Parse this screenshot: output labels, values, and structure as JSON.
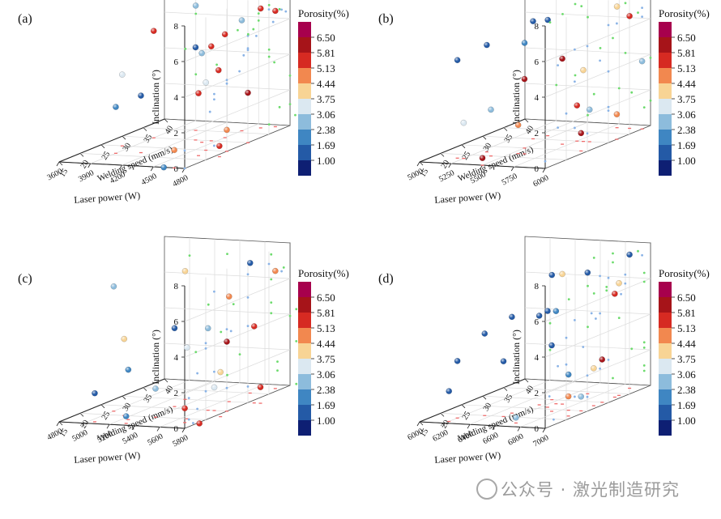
{
  "legend": {
    "title": "Porosity(%)",
    "levels": [
      "6.50",
      "5.81",
      "5.13",
      "4.44",
      "3.75",
      "3.06",
      "2.38",
      "1.69",
      "1.00"
    ],
    "colors": [
      "#a7004d",
      "#a61419",
      "#d62a22",
      "#f2884f",
      "#f8d495",
      "#dbe8f1",
      "#8dbcdc",
      "#3f86c2",
      "#245aa6",
      "#0e1f73"
    ]
  },
  "axes": {
    "zlabel": "Inclination (°)",
    "ylabel": "Welding speed (mm/s)",
    "z_ticks": [
      "0",
      "2",
      "4",
      "6",
      "8"
    ],
    "y_ticks": [
      "15",
      "20",
      "25",
      "30",
      "35",
      "40"
    ]
  },
  "watermark": "公众号 · 激光制造研究",
  "chart_data": [
    {
      "panel": "(a)",
      "type": "scatter3d",
      "xlabel": "Laser power (W)",
      "x_ticks": [
        "3600",
        "3900",
        "4200",
        "4500",
        "4800"
      ],
      "xlim": [
        3600,
        4800
      ],
      "ylim": [
        15,
        40
      ],
      "zlim": [
        0,
        8
      ],
      "points": [
        {
          "x": 4600,
          "y": 38,
          "z": 6.7,
          "p": 5.8
        },
        {
          "x": 4100,
          "y": 35,
          "z": 7.0,
          "p": 2.4
        },
        {
          "x": 4500,
          "y": 36,
          "z": 6.2,
          "p": 2.7
        },
        {
          "x": 4700,
          "y": 39,
          "z": 6.5,
          "p": 5.8
        },
        {
          "x": 3900,
          "y": 30,
          "z": 6.0,
          "p": 5.5
        },
        {
          "x": 4500,
          "y": 32,
          "z": 5.8,
          "p": 5.8
        },
        {
          "x": 4300,
          "y": 30,
          "z": 5.2,
          "p": 1.6
        },
        {
          "x": 4450,
          "y": 30,
          "z": 5.3,
          "p": 5.8
        },
        {
          "x": 4400,
          "y": 29,
          "z": 5.0,
          "p": 2.8
        },
        {
          "x": 4600,
          "y": 28,
          "z": 4.2,
          "p": 5.8
        },
        {
          "x": 3800,
          "y": 25,
          "z": 4.0,
          "p": 3.1
        },
        {
          "x": 4600,
          "y": 25,
          "z": 3.8,
          "p": 3.5
        },
        {
          "x": 4650,
          "y": 22,
          "z": 3.5,
          "p": 5.8
        },
        {
          "x": 4800,
          "y": 30,
          "z": 2.8,
          "p": 6.4
        },
        {
          "x": 4100,
          "y": 22,
          "z": 3.2,
          "p": 1.4
        },
        {
          "x": 3900,
          "y": 21,
          "z": 2.6,
          "p": 2.2
        },
        {
          "x": 4800,
          "y": 25,
          "z": 1.2,
          "p": 4.8
        },
        {
          "x": 4700,
          "y": 15,
          "z": 1.0,
          "p": 4.8
        },
        {
          "x": 4850,
          "y": 22,
          "z": 0.6,
          "p": 5.8
        },
        {
          "x": 4600,
          "y": 15,
          "z": 0.0,
          "p": 2.3
        }
      ]
    },
    {
      "panel": "(b)",
      "type": "scatter3d",
      "xlabel": "Laser power (W)",
      "x_ticks": [
        "5000",
        "5250",
        "5500",
        "5750",
        "6000"
      ],
      "xlim": [
        5000,
        6000
      ],
      "ylim": [
        15,
        40
      ],
      "zlim": [
        0,
        8
      ],
      "points": [
        {
          "x": 5800,
          "y": 38,
          "z": 6.8,
          "p": 4.0
        },
        {
          "x": 5900,
          "y": 38,
          "z": 6.3,
          "p": 5.8
        },
        {
          "x": 5400,
          "y": 30,
          "z": 6.6,
          "p": 1.2
        },
        {
          "x": 5450,
          "y": 32,
          "z": 6.5,
          "p": 1.3
        },
        {
          "x": 5300,
          "y": 22,
          "z": 6.0,
          "p": 1.4
        },
        {
          "x": 5500,
          "y": 25,
          "z": 5.9,
          "p": 1.9
        },
        {
          "x": 5200,
          "y": 18,
          "z": 5.5,
          "p": 1.2
        },
        {
          "x": 5700,
          "y": 28,
          "z": 4.8,
          "p": 6.4
        },
        {
          "x": 5600,
          "y": 22,
          "z": 4.2,
          "p": 6.2
        },
        {
          "x": 5800,
          "y": 30,
          "z": 4.0,
          "p": 4.2
        },
        {
          "x": 6000,
          "y": 38,
          "z": 3.8,
          "p": 2.5
        },
        {
          "x": 5400,
          "y": 20,
          "z": 2.6,
          "p": 2.8
        },
        {
          "x": 5250,
          "y": 18,
          "z": 2.0,
          "p": 3.1
        },
        {
          "x": 5750,
          "y": 30,
          "z": 2.0,
          "p": 5.8
        },
        {
          "x": 5550,
          "y": 22,
          "z": 1.6,
          "p": 4.6
        },
        {
          "x": 5850,
          "y": 30,
          "z": 1.8,
          "p": 3.0
        },
        {
          "x": 6000,
          "y": 32,
          "z": 1.4,
          "p": 4.8
        },
        {
          "x": 5950,
          "y": 25,
          "z": 1.0,
          "p": 6.4
        },
        {
          "x": 5500,
          "y": 15,
          "z": 0.4,
          "p": 6.4
        }
      ]
    },
    {
      "panel": "(c)",
      "type": "scatter3d",
      "xlabel": "Laser power (W)",
      "x_ticks": [
        "4800",
        "5000",
        "5200",
        "5400",
        "5600",
        "5800"
      ],
      "xlim": [
        4800,
        5800
      ],
      "ylim": [
        15,
        40
      ],
      "zlim": [
        0,
        8
      ],
      "points": [
        {
          "x": 5300,
          "y": 30,
          "z": 7.2,
          "p": 4.0
        },
        {
          "x": 5000,
          "y": 22,
          "z": 7.0,
          "p": 2.5
        },
        {
          "x": 5650,
          "y": 35,
          "z": 7.3,
          "p": 1.2
        },
        {
          "x": 5750,
          "y": 38,
          "z": 6.6,
          "p": 4.8
        },
        {
          "x": 5650,
          "y": 30,
          "z": 5.9,
          "p": 4.8
        },
        {
          "x": 5650,
          "y": 25,
          "z": 4.6,
          "p": 2.4
        },
        {
          "x": 5350,
          "y": 26,
          "z": 4.4,
          "p": 1.3
        },
        {
          "x": 5150,
          "y": 20,
          "z": 4.3,
          "p": 4.2
        },
        {
          "x": 5850,
          "y": 30,
          "z": 4.3,
          "p": 5.8
        },
        {
          "x": 5800,
          "y": 25,
          "z": 3.9,
          "p": 6.4
        },
        {
          "x": 5650,
          "y": 20,
          "z": 4.0,
          "p": 3.5
        },
        {
          "x": 5250,
          "y": 18,
          "z": 2.8,
          "p": 1.9
        },
        {
          "x": 5850,
          "y": 22,
          "z": 2.5,
          "p": 4.4
        },
        {
          "x": 5050,
          "y": 16,
          "z": 1.6,
          "p": 1.4
        },
        {
          "x": 5400,
          "y": 20,
          "z": 1.6,
          "p": 3.0
        },
        {
          "x": 5700,
          "y": 25,
          "z": 1.3,
          "p": 3.3
        },
        {
          "x": 5700,
          "y": 18,
          "z": 0.8,
          "p": 5.8
        },
        {
          "x": 5300,
          "y": 16,
          "z": 0.4,
          "p": 2.3
        },
        {
          "x": 5900,
          "y": 30,
          "z": 0.9,
          "p": 5.8
        },
        {
          "x": 5850,
          "y": 17,
          "z": 0.1,
          "p": 5.8
        }
      ]
    },
    {
      "panel": "(d)",
      "type": "scatter3d",
      "xlabel": "Laser power (W)",
      "x_ticks": [
        "6000",
        "6200",
        "6400",
        "6600",
        "6800",
        "7000"
      ],
      "xlim": [
        6000,
        7000
      ],
      "ylim": [
        15,
        40
      ],
      "zlim": [
        0,
        8
      ],
      "points": [
        {
          "x": 6900,
          "y": 38,
          "z": 7.5,
          "p": 1.6
        },
        {
          "x": 6700,
          "y": 28,
          "z": 7.3,
          "p": 4.0
        },
        {
          "x": 6550,
          "y": 30,
          "z": 7.0,
          "p": 1.2
        },
        {
          "x": 6700,
          "y": 34,
          "z": 6.8,
          "p": 1.1
        },
        {
          "x": 6950,
          "y": 34,
          "z": 6.3,
          "p": 4.0
        },
        {
          "x": 6950,
          "y": 33,
          "z": 5.8,
          "p": 5.8
        },
        {
          "x": 6500,
          "y": 22,
          "z": 5.4,
          "p": 1.3
        },
        {
          "x": 6650,
          "y": 26,
          "z": 5.4,
          "p": 1.4
        },
        {
          "x": 6550,
          "y": 27,
          "z": 5.0,
          "p": 1.4
        },
        {
          "x": 6350,
          "y": 20,
          "z": 4.6,
          "p": 1.3
        },
        {
          "x": 6650,
          "y": 28,
          "z": 5.2,
          "p": 2.3
        },
        {
          "x": 6750,
          "y": 24,
          "z": 3.7,
          "p": 1.4
        },
        {
          "x": 6200,
          "y": 18,
          "z": 3.2,
          "p": 1.4
        },
        {
          "x": 6500,
          "y": 20,
          "z": 3.1,
          "p": 1.5
        },
        {
          "x": 6950,
          "y": 30,
          "z": 2.4,
          "p": 6.4
        },
        {
          "x": 6950,
          "y": 28,
          "z": 2.1,
          "p": 4.2
        },
        {
          "x": 6850,
          "y": 25,
          "z": 2.0,
          "p": 1.7
        },
        {
          "x": 6200,
          "y": 16,
          "z": 1.7,
          "p": 1.2
        },
        {
          "x": 6950,
          "y": 22,
          "z": 1.1,
          "p": 4.8
        },
        {
          "x": 6950,
          "y": 25,
          "z": 0.8,
          "p": 2.4
        },
        {
          "x": 6700,
          "y": 17,
          "z": 0.3,
          "p": 2.4
        }
      ]
    }
  ]
}
